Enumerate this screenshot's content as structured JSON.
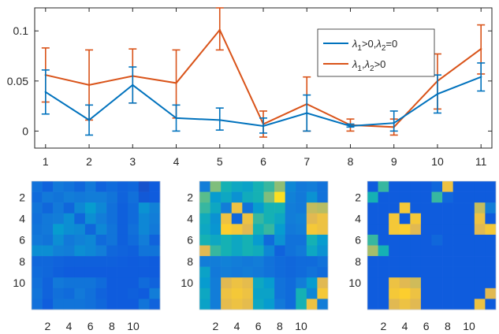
{
  "colors": {
    "series1": "#0072BD",
    "series2": "#D95319",
    "axis": "#262626"
  },
  "chart_data": [
    {
      "type": "line",
      "title": "",
      "xlabel": "",
      "ylabel": "",
      "xlim": [
        0.75,
        11.25
      ],
      "ylim": [
        -0.017,
        0.123
      ],
      "x": [
        1,
        2,
        3,
        4,
        5,
        6,
        7,
        8,
        9,
        10,
        11
      ],
      "x_ticks": [
        "1",
        "2",
        "3",
        "4",
        "5",
        "6",
        "7",
        "8",
        "9",
        "10",
        "11"
      ],
      "y_ticks": [
        0,
        0.05,
        0.1
      ],
      "y_tick_labels": [
        "0",
        "0.05",
        "0.1"
      ],
      "grid": false,
      "legend_position": "right",
      "series": [
        {
          "name": "λ1>0,λ2=0",
          "legend_parts": [
            "λ",
            "1",
            ">0,",
            "λ",
            "2",
            "=0"
          ],
          "color": "#0072BD",
          "values": [
            0.039,
            0.011,
            0.046,
            0.013,
            0.011,
            0.005,
            0.018,
            0.005,
            0.008,
            0.037,
            0.054
          ],
          "err_low": [
            0.017,
            -0.004,
            0.028,
            0.0,
            0.001,
            -0.002,
            0.0,
            0.004,
            0.0,
            0.018,
            0.04
          ],
          "err_high": [
            0.061,
            0.026,
            0.064,
            0.026,
            0.023,
            0.013,
            0.036,
            0.007,
            0.02,
            0.056,
            0.068
          ]
        },
        {
          "name": "λ1,λ2>0",
          "legend_parts": [
            "λ",
            "1",
            ",",
            "λ",
            "2",
            ">0"
          ],
          "color": "#D95319",
          "values": [
            0.056,
            0.046,
            0.055,
            0.048,
            0.101,
            0.007,
            0.027,
            0.006,
            0.004,
            0.05,
            0.082
          ],
          "err_low": [
            0.029,
            0.011,
            0.028,
            0.013,
            0.081,
            -0.006,
            0.0,
            0.0,
            -0.004,
            0.022,
            0.057
          ],
          "err_high": [
            0.083,
            0.081,
            0.082,
            0.081,
            0.123,
            0.02,
            0.054,
            0.012,
            0.012,
            0.077,
            0.106
          ]
        }
      ]
    },
    {
      "type": "heatmap",
      "title": "",
      "x_tick_labels": [
        "2",
        "4",
        "6",
        "8",
        "10"
      ],
      "y_tick_labels": [
        "2",
        "4",
        "6",
        "8",
        "10"
      ],
      "colormap": "parula",
      "vmin": 0,
      "vmax": 1,
      "values": [
        [
          0.25,
          0.18,
          0.28,
          0.25,
          0.2,
          0.28,
          0.18,
          0.22,
          0.18,
          0.2,
          0.12,
          0.15
        ],
        [
          0.22,
          0.28,
          0.26,
          0.3,
          0.28,
          0.3,
          0.3,
          0.26,
          0.18,
          0.24,
          0.14,
          0.15
        ],
        [
          0.26,
          0.2,
          0.28,
          0.2,
          0.35,
          0.45,
          0.35,
          0.24,
          0.17,
          0.22,
          0.4,
          0.32
        ],
        [
          0.24,
          0.28,
          0.3,
          0.38,
          0.2,
          0.38,
          0.3,
          0.24,
          0.17,
          0.22,
          0.35,
          0.3
        ],
        [
          0.26,
          0.28,
          0.45,
          0.38,
          0.36,
          0.2,
          0.35,
          0.26,
          0.17,
          0.24,
          0.35,
          0.28
        ],
        [
          0.28,
          0.26,
          0.38,
          0.28,
          0.32,
          0.35,
          0.22,
          0.26,
          0.17,
          0.22,
          0.3,
          0.18
        ],
        [
          0.38,
          0.38,
          0.32,
          0.3,
          0.38,
          0.35,
          0.3,
          0.2,
          0.18,
          0.17,
          0.26,
          0.26
        ],
        [
          0.2,
          0.2,
          0.18,
          0.17,
          0.17,
          0.17,
          0.17,
          0.17,
          0.16,
          0.15,
          0.16,
          0.15
        ],
        [
          0.22,
          0.2,
          0.17,
          0.15,
          0.15,
          0.15,
          0.15,
          0.15,
          0.15,
          0.15,
          0.15,
          0.15
        ],
        [
          0.24,
          0.18,
          0.28,
          0.26,
          0.26,
          0.26,
          0.22,
          0.15,
          0.15,
          0.15,
          0.22,
          0.18
        ],
        [
          0.26,
          0.18,
          0.24,
          0.22,
          0.28,
          0.24,
          0.18,
          0.15,
          0.15,
          0.17,
          0.15,
          0.3
        ],
        [
          0.24,
          0.16,
          0.26,
          0.26,
          0.26,
          0.24,
          0.2,
          0.15,
          0.15,
          0.15,
          0.26,
          0.18
        ]
      ]
    },
    {
      "type": "heatmap",
      "title": "",
      "x_tick_labels": [
        "2",
        "4",
        "6",
        "8",
        "10"
      ],
      "y_tick_labels": [
        "2",
        "4",
        "6",
        "8",
        "10"
      ],
      "colormap": "parula",
      "vmin": 0,
      "vmax": 1,
      "values": [
        [
          0.3,
          0.7,
          0.55,
          0.5,
          0.48,
          0.55,
          0.6,
          0.72,
          0.35,
          0.28,
          0.3,
          0.25
        ],
        [
          0.65,
          0.45,
          0.5,
          0.4,
          0.52,
          0.55,
          0.7,
          0.95,
          0.32,
          0.28,
          0.4,
          0.25
        ],
        [
          0.6,
          0.5,
          0.3,
          0.88,
          0.25,
          0.45,
          0.55,
          0.55,
          0.3,
          0.28,
          0.8,
          0.78
        ],
        [
          0.52,
          0.4,
          0.88,
          0.2,
          0.88,
          0.6,
          0.55,
          0.5,
          0.3,
          0.32,
          0.85,
          0.88
        ],
        [
          0.5,
          0.42,
          0.92,
          0.9,
          0.85,
          0.55,
          0.6,
          0.45,
          0.28,
          0.3,
          0.9,
          0.88
        ],
        [
          0.55,
          0.5,
          0.55,
          0.5,
          0.55,
          0.45,
          0.22,
          0.4,
          0.25,
          0.25,
          0.55,
          0.45
        ],
        [
          0.85,
          0.6,
          0.55,
          0.5,
          0.55,
          0.52,
          0.35,
          0.18,
          0.25,
          0.28,
          0.5,
          0.4
        ],
        [
          0.3,
          0.3,
          0.32,
          0.3,
          0.28,
          0.3,
          0.25,
          0.22,
          0.2,
          0.22,
          0.22,
          0.25
        ],
        [
          0.48,
          0.28,
          0.3,
          0.28,
          0.3,
          0.28,
          0.25,
          0.22,
          0.2,
          0.22,
          0.25,
          0.22
        ],
        [
          0.45,
          0.3,
          0.85,
          0.88,
          0.86,
          0.5,
          0.45,
          0.25,
          0.22,
          0.3,
          0.45,
          0.85
        ],
        [
          0.5,
          0.3,
          0.88,
          0.9,
          0.88,
          0.48,
          0.48,
          0.25,
          0.22,
          0.55,
          0.35,
          0.9
        ],
        [
          0.48,
          0.3,
          0.86,
          0.88,
          0.86,
          0.5,
          0.45,
          0.28,
          0.22,
          0.55,
          0.88,
          0.3
        ]
      ]
    },
    {
      "type": "heatmap",
      "title": "",
      "x_tick_labels": [
        "2",
        "4",
        "6",
        "8",
        "10"
      ],
      "y_tick_labels": [
        "2",
        "4",
        "6",
        "8",
        "10"
      ],
      "colormap": "parula",
      "vmin": 0,
      "vmax": 1,
      "values": [
        [
          0.15,
          0.6,
          0.15,
          0.15,
          0.15,
          0.15,
          0.2,
          0.88,
          0.15,
          0.15,
          0.15,
          0.15
        ],
        [
          0.55,
          0.15,
          0.15,
          0.15,
          0.15,
          0.15,
          0.6,
          0.2,
          0.15,
          0.15,
          0.15,
          0.15
        ],
        [
          0.15,
          0.15,
          0.15,
          0.9,
          0.15,
          0.15,
          0.15,
          0.15,
          0.15,
          0.15,
          0.8,
          0.3
        ],
        [
          0.15,
          0.15,
          0.9,
          0.15,
          0.9,
          0.15,
          0.15,
          0.15,
          0.15,
          0.15,
          0.88,
          0.15
        ],
        [
          0.15,
          0.15,
          0.9,
          0.92,
          0.85,
          0.15,
          0.15,
          0.15,
          0.15,
          0.15,
          0.85,
          0.9
        ],
        [
          0.6,
          0.15,
          0.15,
          0.15,
          0.15,
          0.15,
          0.2,
          0.15,
          0.15,
          0.15,
          0.15,
          0.15
        ],
        [
          0.75,
          0.55,
          0.15,
          0.15,
          0.15,
          0.15,
          0.15,
          0.15,
          0.15,
          0.15,
          0.15,
          0.15
        ],
        [
          0.15,
          0.15,
          0.15,
          0.15,
          0.15,
          0.15,
          0.15,
          0.15,
          0.15,
          0.15,
          0.15,
          0.15
        ],
        [
          0.15,
          0.15,
          0.15,
          0.15,
          0.15,
          0.15,
          0.15,
          0.15,
          0.15,
          0.15,
          0.15,
          0.15
        ],
        [
          0.15,
          0.15,
          0.88,
          0.85,
          0.82,
          0.15,
          0.15,
          0.15,
          0.15,
          0.15,
          0.15,
          0.15
        ],
        [
          0.15,
          0.15,
          0.9,
          0.92,
          0.88,
          0.15,
          0.15,
          0.15,
          0.15,
          0.15,
          0.15,
          0.85
        ],
        [
          0.15,
          0.15,
          0.85,
          0.88,
          0.85,
          0.15,
          0.15,
          0.15,
          0.15,
          0.15,
          0.88,
          0.15
        ]
      ]
    }
  ]
}
